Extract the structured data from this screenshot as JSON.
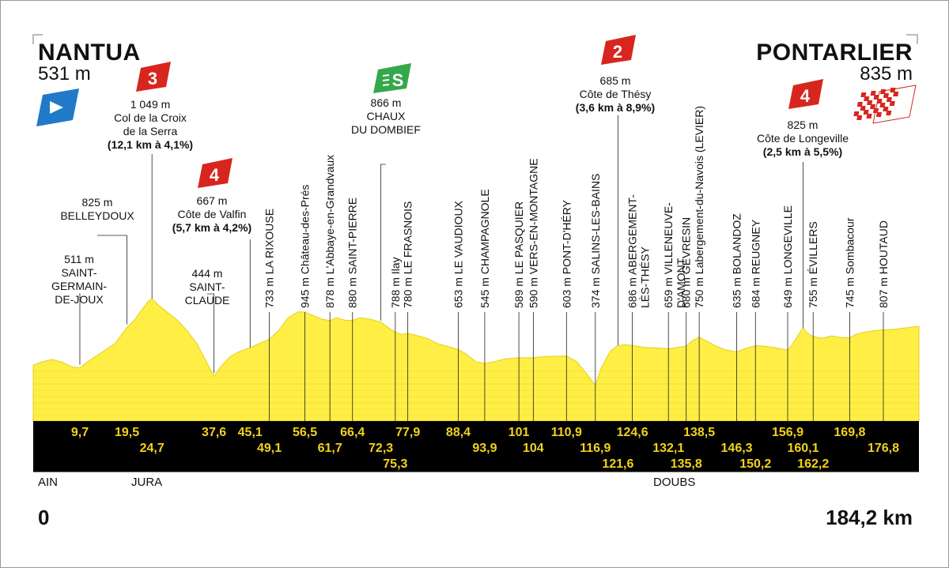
{
  "start": {
    "name": "NANTUA",
    "altitude": "531 m"
  },
  "finish": {
    "name": "PONTARLIER",
    "altitude": "835 m"
  },
  "distance": {
    "start": "0",
    "end": "184,2 km"
  },
  "regions": [
    {
      "name": "AIN",
      "km": 0
    },
    {
      "name": "JURA",
      "km": 24.7
    },
    {
      "name": "DOUBS",
      "km": 135.8
    }
  ],
  "colors": {
    "profile": "#ffee44",
    "band": "#000000",
    "km_text": "#f2d21b",
    "climb_red": "#d7261e",
    "sprint_green": "#34a84a",
    "start_blue": "#2179c9"
  },
  "climbs": [
    {
      "km": 24.7,
      "category": "3",
      "altitude": "1 049 m",
      "name": "Col de la Croix\nde la Serra",
      "stats": "(12,1 km à 4,1%)"
    },
    {
      "km": 45.1,
      "category": "4",
      "altitude": "667 m",
      "name": "Côte de Valfin",
      "stats": "(5,7 km à 4,2%)"
    },
    {
      "km": 121.6,
      "category": "2",
      "altitude": "685 m",
      "name": "Côte de Thésy",
      "stats": "(3,6 km à 8,9%)"
    },
    {
      "km": 160.1,
      "category": "4",
      "altitude": "825 m",
      "name": "Côte de Longeville",
      "stats": "(2,5 km à 5,5%)"
    }
  ],
  "sprint": {
    "km": 72.3,
    "label": "S",
    "altitude": "866 m",
    "name": "CHAUX\nDU DOMBIEF"
  },
  "horizontal_places": [
    {
      "km": 9.7,
      "altitude": "511 m",
      "name": "SAINT-\nGERMAIN-\nDE-JOUX"
    },
    {
      "km": 19.5,
      "altitude": "825 m",
      "name": "BELLEYDOUX"
    },
    {
      "km": 37.6,
      "altitude": "444 m",
      "name": "SAINT-\nCLAUDE"
    }
  ],
  "vertical_places": [
    {
      "km": 49.1,
      "label": "733 m LA RIXOUSE"
    },
    {
      "km": 56.5,
      "label": "945 m Château-des-Prés"
    },
    {
      "km": 61.7,
      "label": "878 m L'Abbaye-en-Grandvaux"
    },
    {
      "km": 66.4,
      "label": "880 m SAINT-PIERRE"
    },
    {
      "km": 75.3,
      "label": "788 m Ilay"
    },
    {
      "km": 77.9,
      "label": "780 m LE FRASNOIS"
    },
    {
      "km": 88.4,
      "label": "653 m LE VAUDIOUX"
    },
    {
      "km": 93.9,
      "label": "545 m CHAMPAGNOLE"
    },
    {
      "km": 101,
      "label": "589 m LE PASQUIER"
    },
    {
      "km": 104,
      "label": "590 m VERS-EN-MONTAGNE"
    },
    {
      "km": 110.9,
      "label": "603 m PONT-D'HÉRY"
    },
    {
      "km": 116.9,
      "label": "374 m SALINS-LES-BAINS"
    },
    {
      "km": 124.6,
      "label": "686 m ABERGEMENT-\nLÈS-THÉSY"
    },
    {
      "km": 132.1,
      "label": "659 m VILLENEUVE-\nD'AMONT"
    },
    {
      "km": 135.8,
      "label": "680 m GEVRESIN"
    },
    {
      "km": 138.5,
      "label": "750 m Labergement-du-Navois (LEVIER)"
    },
    {
      "km": 146.3,
      "label": "635 m BOLANDOZ"
    },
    {
      "km": 150.2,
      "label": "684 m REUGNEY"
    },
    {
      "km": 156.9,
      "label": "649 m LONGEVILLE"
    },
    {
      "km": 162.2,
      "label": "755 m ÉVILLERS"
    },
    {
      "km": 169.8,
      "label": "745 m Sombacour"
    },
    {
      "km": 176.8,
      "label": "807 m HOUTAUD"
    }
  ],
  "km_marks": [
    {
      "km": 9.7,
      "label": "9,7",
      "row": 1
    },
    {
      "km": 19.5,
      "label": "19,5",
      "row": 1
    },
    {
      "km": 24.7,
      "label": "24,7",
      "row": 2
    },
    {
      "km": 37.6,
      "label": "37,6",
      "row": 1
    },
    {
      "km": 45.1,
      "label": "45,1",
      "row": 1
    },
    {
      "km": 49.1,
      "label": "49,1",
      "row": 2
    },
    {
      "km": 56.5,
      "label": "56,5",
      "row": 1
    },
    {
      "km": 61.7,
      "label": "61,7",
      "row": 2
    },
    {
      "km": 66.4,
      "label": "66,4",
      "row": 1
    },
    {
      "km": 72.3,
      "label": "72,3",
      "row": 2
    },
    {
      "km": 75.3,
      "label": "75,3",
      "row": 3
    },
    {
      "km": 77.9,
      "label": "77,9",
      "row": 1
    },
    {
      "km": 88.4,
      "label": "88,4",
      "row": 1
    },
    {
      "km": 93.9,
      "label": "93,9",
      "row": 2
    },
    {
      "km": 101,
      "label": "101",
      "row": 1
    },
    {
      "km": 104,
      "label": "104",
      "row": 2
    },
    {
      "km": 110.9,
      "label": "110,9",
      "row": 1
    },
    {
      "km": 116.9,
      "label": "116,9",
      "row": 2
    },
    {
      "km": 121.6,
      "label": "121,6",
      "row": 3
    },
    {
      "km": 124.6,
      "label": "124,6",
      "row": 1
    },
    {
      "km": 132.1,
      "label": "132,1",
      "row": 2
    },
    {
      "km": 135.8,
      "label": "135,8",
      "row": 3
    },
    {
      "km": 138.5,
      "label": "138,5",
      "row": 1
    },
    {
      "km": 146.3,
      "label": "146,3",
      "row": 2
    },
    {
      "km": 150.2,
      "label": "150,2",
      "row": 3
    },
    {
      "km": 156.9,
      "label": "156,9",
      "row": 1
    },
    {
      "km": 160.1,
      "label": "160,1",
      "row": 2
    },
    {
      "km": 162.2,
      "label": "162,2",
      "row": 3
    },
    {
      "km": 169.8,
      "label": "169,8",
      "row": 1
    },
    {
      "km": 176.8,
      "label": "176,8",
      "row": 2
    }
  ],
  "profile": [
    [
      0,
      531
    ],
    [
      2,
      560
    ],
    [
      4,
      575
    ],
    [
      6,
      555
    ],
    [
      8,
      520
    ],
    [
      9.7,
      511
    ],
    [
      11,
      550
    ],
    [
      13,
      600
    ],
    [
      15,
      650
    ],
    [
      17,
      700
    ],
    [
      19.5,
      825
    ],
    [
      21,
      880
    ],
    [
      22.5,
      960
    ],
    [
      24,
      1030
    ],
    [
      24.7,
      1049
    ],
    [
      26,
      1000
    ],
    [
      28,
      940
    ],
    [
      30,
      880
    ],
    [
      32,
      800
    ],
    [
      34,
      700
    ],
    [
      36,
      560
    ],
    [
      37.6,
      444
    ],
    [
      39,
      520
    ],
    [
      41,
      600
    ],
    [
      43,
      640
    ],
    [
      45.1,
      667
    ],
    [
      47,
      700
    ],
    [
      49.1,
      733
    ],
    [
      51,
      800
    ],
    [
      53,
      900
    ],
    [
      55,
      945
    ],
    [
      56.5,
      945
    ],
    [
      58,
      920
    ],
    [
      60,
      890
    ],
    [
      61.7,
      878
    ],
    [
      63,
      900
    ],
    [
      65,
      880
    ],
    [
      66.4,
      880
    ],
    [
      68,
      900
    ],
    [
      70,
      890
    ],
    [
      72.3,
      866
    ],
    [
      74,
      820
    ],
    [
      75.3,
      788
    ],
    [
      76.5,
      770
    ],
    [
      77.9,
      780
    ],
    [
      80,
      760
    ],
    [
      82,
      740
    ],
    [
      84,
      700
    ],
    [
      86,
      680
    ],
    [
      88.4,
      653
    ],
    [
      90,
      620
    ],
    [
      92,
      560
    ],
    [
      93.9,
      545
    ],
    [
      96,
      560
    ],
    [
      98,
      580
    ],
    [
      101,
      589
    ],
    [
      104,
      590
    ],
    [
      107,
      600
    ],
    [
      110.9,
      603
    ],
    [
      113,
      560
    ],
    [
      115,
      470
    ],
    [
      116.9,
      374
    ],
    [
      118,
      500
    ],
    [
      120,
      640
    ],
    [
      121.6,
      685
    ],
    [
      123,
      690
    ],
    [
      124.6,
      686
    ],
    [
      127,
      670
    ],
    [
      130,
      665
    ],
    [
      132.1,
      659
    ],
    [
      134,
      670
    ],
    [
      135.8,
      680
    ],
    [
      137,
      720
    ],
    [
      138.5,
      750
    ],
    [
      140,
      720
    ],
    [
      142,
      680
    ],
    [
      144,
      650
    ],
    [
      146.3,
      635
    ],
    [
      148,
      660
    ],
    [
      150.2,
      684
    ],
    [
      152,
      680
    ],
    [
      154,
      670
    ],
    [
      156.9,
      649
    ],
    [
      158,
      700
    ],
    [
      160.1,
      825
    ],
    [
      161,
      780
    ],
    [
      162.2,
      755
    ],
    [
      164,
      740
    ],
    [
      166,
      760
    ],
    [
      168,
      745
    ],
    [
      169.8,
      745
    ],
    [
      171,
      770
    ],
    [
      173,
      790
    ],
    [
      175,
      800
    ],
    [
      176.8,
      807
    ],
    [
      179,
      810
    ],
    [
      181,
      820
    ],
    [
      184.2,
      835
    ]
  ]
}
